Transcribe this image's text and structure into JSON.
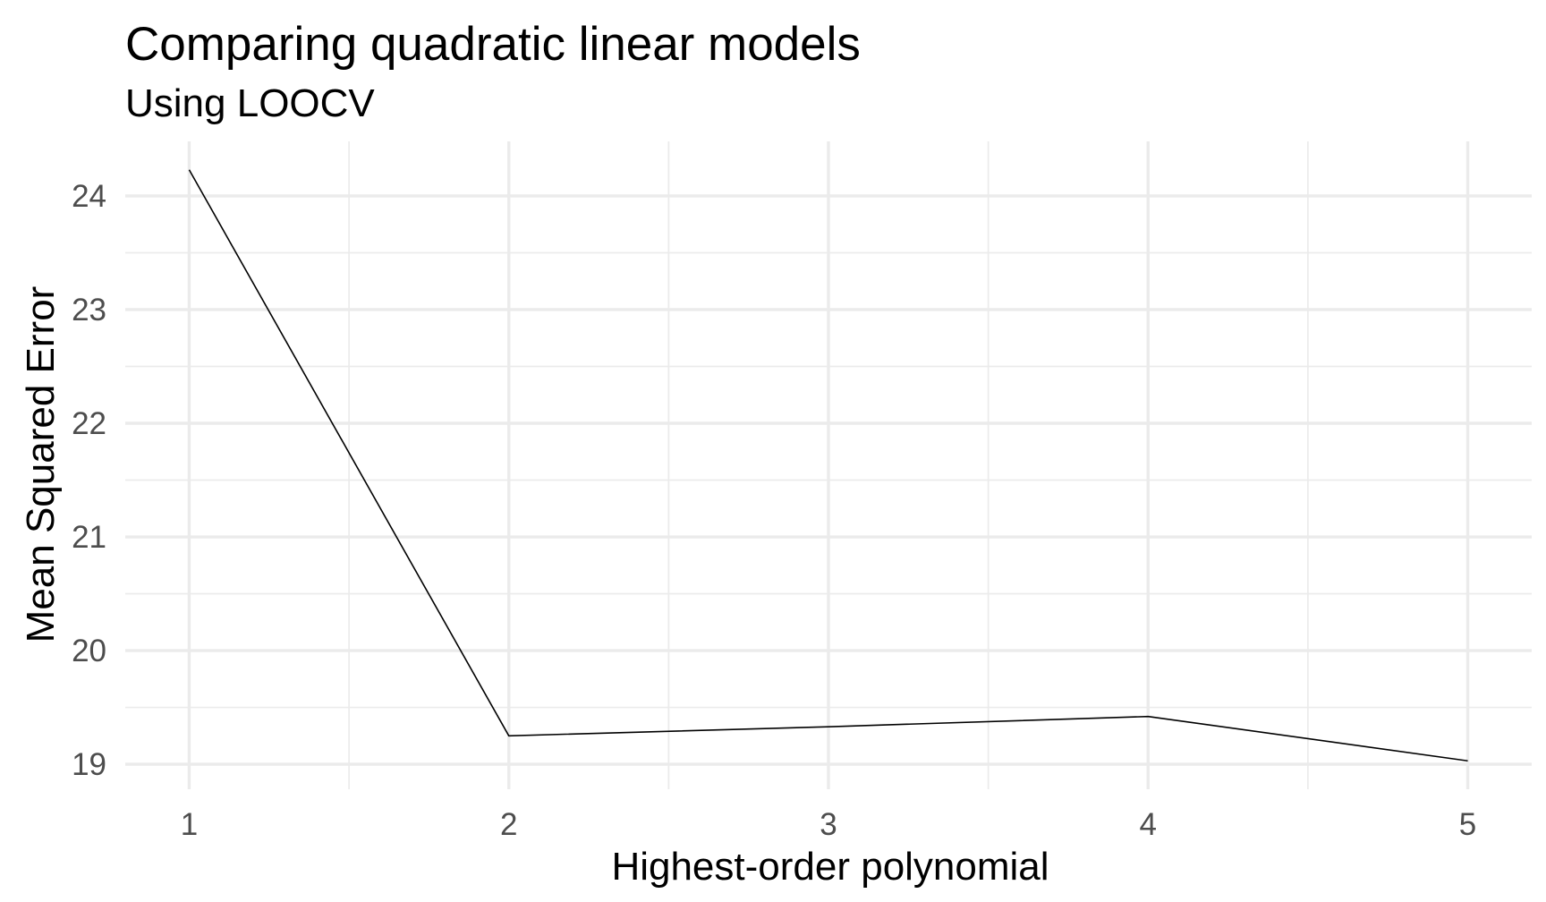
{
  "chart_data": {
    "type": "line",
    "title": "Comparing quadratic linear models",
    "subtitle": "Using LOOCV",
    "xlabel": "Highest-order polynomial",
    "ylabel": "Mean Squared Error",
    "x": [
      1,
      2,
      3,
      4,
      5
    ],
    "series": [
      {
        "values": [
          24.23,
          19.25,
          19.33,
          19.42,
          19.03
        ]
      }
    ],
    "x_ticks": [
      "1",
      "2",
      "3",
      "4",
      "5"
    ],
    "y_ticks": [
      "19",
      "20",
      "21",
      "22",
      "23",
      "24"
    ],
    "xlim": [
      0.8,
      5.2
    ],
    "ylim": [
      18.78,
      24.48
    ],
    "grid": true,
    "legend": "none",
    "colors": {
      "line": "#000000",
      "grid": "#ebebeb",
      "tick_text": "#4d4d4d",
      "background": "#ffffff"
    }
  }
}
